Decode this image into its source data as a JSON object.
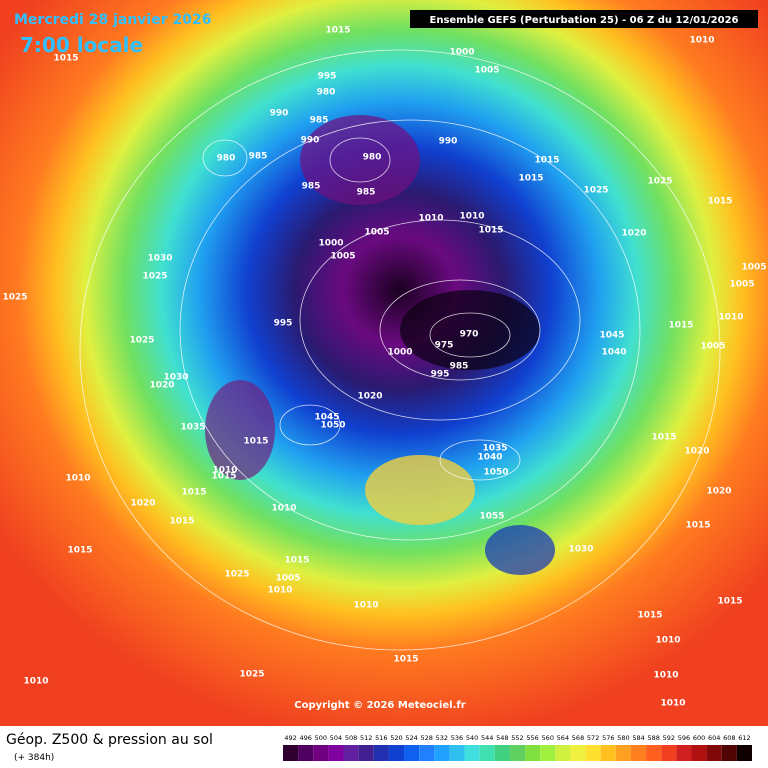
{
  "header": {
    "date": "Mercredi 28 janvier 2026",
    "time": "7:00 locale",
    "model": "Ensemble GEFS  (Perturbation 25)  -  06 Z du 12/01/2026"
  },
  "map": {
    "copyright": "Copyright © 2026 Meteociel.fr",
    "pressure_labels": [
      "1015",
      "1015",
      "1000",
      "1005",
      "1010",
      "995",
      "980",
      "990",
      "985",
      "990",
      "990",
      "980",
      "985",
      "980",
      "985",
      "985",
      "1015",
      "1015",
      "1025",
      "1025",
      "1015",
      "1010",
      "1010",
      "1015",
      "1005",
      "1000",
      "1005",
      "1020",
      "1030",
      "1025",
      "1005",
      "1005",
      "1025",
      "995",
      "970",
      "975",
      "1000",
      "1045",
      "1040",
      "1015",
      "1010",
      "1005",
      "1025",
      "985",
      "995",
      "1030",
      "1020",
      "1020",
      "1035",
      "1045",
      "1050",
      "1015",
      "1015",
      "1020",
      "1010",
      "1015",
      "1010",
      "1035",
      "1040",
      "1050",
      "1015",
      "1020",
      "1020",
      "1010",
      "1055",
      "1015",
      "1015",
      "1015",
      "1030",
      "1015",
      "1005",
      "1025",
      "1010",
      "1010",
      "1015",
      "1015",
      "1010",
      "1015",
      "1010",
      "1025",
      "1010",
      "1010"
    ]
  },
  "footer": {
    "title": "Géop. Z500 & pression au sol",
    "lead": "(+ 384h)"
  },
  "legend": {
    "levels": [
      492,
      496,
      500,
      504,
      508,
      512,
      516,
      520,
      524,
      528,
      532,
      536,
      540,
      544,
      548,
      552,
      556,
      560,
      564,
      568,
      572,
      576,
      580,
      584,
      588,
      592,
      596,
      600,
      604,
      608,
      612
    ]
  }
}
